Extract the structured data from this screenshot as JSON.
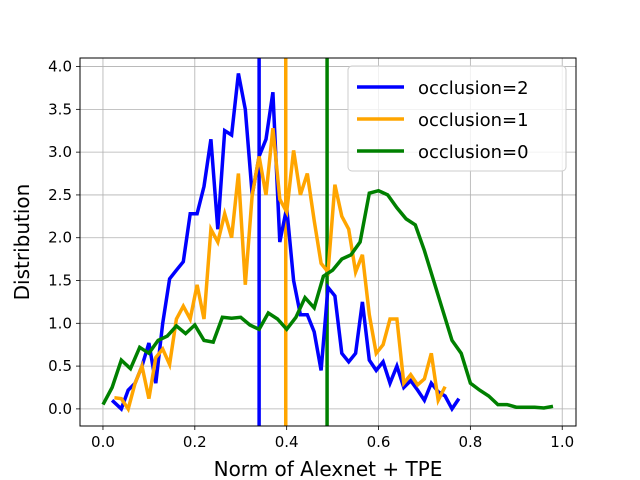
{
  "chart_data": {
    "type": "line",
    "xlabel": "Norm of Alexnet + TPE",
    "ylabel": "Distribution",
    "xlim": [
      -0.05,
      1.03
    ],
    "ylim": [
      -0.2,
      4.1
    ],
    "xticks": [
      0.0,
      0.2,
      0.4,
      0.6,
      0.8,
      1.0
    ],
    "xtick_labels": [
      "0.0",
      "0.2",
      "0.4",
      "0.6",
      "0.8",
      "1.0"
    ],
    "yticks": [
      0.0,
      0.5,
      1.0,
      1.5,
      2.0,
      2.5,
      3.0,
      3.5,
      4.0
    ],
    "ytick_labels": [
      "0.0",
      "0.5",
      "1.0",
      "1.5",
      "2.0",
      "2.5",
      "3.0",
      "3.5",
      "4.0"
    ],
    "grid": true,
    "legend_position": "top-right",
    "series": [
      {
        "name": "occlusion=2",
        "color": "#0000ff",
        "x": [
          0.02,
          0.04,
          0.055,
          0.07,
          0.085,
          0.1,
          0.115,
          0.13,
          0.145,
          0.16,
          0.175,
          0.19,
          0.205,
          0.22,
          0.235,
          0.25,
          0.265,
          0.28,
          0.295,
          0.31,
          0.325,
          0.34,
          0.355,
          0.37,
          0.385,
          0.4,
          0.415,
          0.43,
          0.445,
          0.46,
          0.475,
          0.49,
          0.505,
          0.52,
          0.535,
          0.55,
          0.565,
          0.58,
          0.595,
          0.61,
          0.625,
          0.64,
          0.655,
          0.67,
          0.685,
          0.7,
          0.715,
          0.73,
          0.745,
          0.76,
          0.775
        ],
        "y": [
          0.1,
          0.0,
          0.22,
          0.3,
          0.5,
          0.77,
          0.3,
          1.0,
          1.52,
          1.62,
          1.72,
          2.28,
          2.28,
          2.6,
          3.15,
          2.1,
          3.25,
          3.2,
          3.92,
          3.5,
          2.5,
          2.95,
          3.15,
          3.7,
          1.95,
          2.35,
          1.5,
          1.1,
          1.1,
          0.9,
          0.45,
          1.42,
          1.32,
          0.65,
          0.55,
          0.65,
          1.25,
          0.57,
          0.45,
          0.55,
          0.3,
          0.5,
          0.25,
          0.33,
          0.22,
          0.1,
          0.3,
          0.2,
          0.15,
          0.0,
          0.12
        ]
      },
      {
        "name": "occlusion=1",
        "color": "#ffa500",
        "x": [
          0.025,
          0.04,
          0.055,
          0.07,
          0.085,
          0.1,
          0.115,
          0.13,
          0.145,
          0.16,
          0.175,
          0.19,
          0.205,
          0.22,
          0.235,
          0.25,
          0.265,
          0.28,
          0.295,
          0.31,
          0.325,
          0.34,
          0.355,
          0.37,
          0.385,
          0.4,
          0.415,
          0.43,
          0.445,
          0.46,
          0.475,
          0.49,
          0.505,
          0.52,
          0.535,
          0.55,
          0.565,
          0.58,
          0.595,
          0.61,
          0.625,
          0.64,
          0.655,
          0.67,
          0.685,
          0.7,
          0.715,
          0.73,
          0.745
        ],
        "y": [
          0.13,
          0.12,
          0.0,
          0.3,
          0.5,
          0.12,
          0.6,
          0.7,
          0.52,
          1.05,
          1.2,
          1.05,
          1.45,
          1.05,
          2.1,
          1.95,
          2.28,
          2.0,
          2.75,
          1.45,
          2.5,
          2.95,
          2.5,
          3.28,
          2.45,
          2.3,
          3.02,
          2.5,
          2.75,
          2.2,
          1.7,
          1.6,
          2.62,
          2.25,
          2.1,
          1.6,
          1.8,
          1.1,
          0.65,
          0.75,
          1.05,
          1.05,
          0.3,
          0.4,
          0.28,
          0.35,
          0.65,
          0.1,
          0.26
        ]
      },
      {
        "name": "occlusion=0",
        "color": "#008000",
        "x": [
          0.0,
          0.02,
          0.04,
          0.06,
          0.08,
          0.1,
          0.12,
          0.14,
          0.16,
          0.18,
          0.2,
          0.22,
          0.24,
          0.26,
          0.28,
          0.3,
          0.32,
          0.34,
          0.36,
          0.38,
          0.4,
          0.42,
          0.44,
          0.46,
          0.48,
          0.5,
          0.52,
          0.54,
          0.56,
          0.58,
          0.6,
          0.62,
          0.64,
          0.66,
          0.68,
          0.7,
          0.72,
          0.74,
          0.76,
          0.78,
          0.8,
          0.82,
          0.84,
          0.86,
          0.88,
          0.9,
          0.92,
          0.94,
          0.96,
          0.98
        ],
        "y": [
          0.05,
          0.25,
          0.57,
          0.47,
          0.72,
          0.65,
          0.8,
          0.85,
          0.97,
          0.88,
          0.98,
          0.8,
          0.78,
          1.07,
          1.06,
          1.07,
          0.98,
          0.93,
          1.12,
          1.05,
          0.93,
          1.07,
          1.3,
          1.18,
          1.55,
          1.62,
          1.75,
          1.8,
          1.95,
          2.52,
          2.55,
          2.5,
          2.35,
          2.22,
          2.15,
          1.85,
          1.5,
          1.15,
          0.8,
          0.65,
          0.3,
          0.22,
          0.15,
          0.05,
          0.05,
          0.02,
          0.02,
          0.02,
          0.01,
          0.03
        ]
      }
    ],
    "vlines": [
      {
        "x": 0.34,
        "color": "#0000ff"
      },
      {
        "x": 0.398,
        "color": "#ffa500"
      },
      {
        "x": 0.488,
        "color": "#008000"
      }
    ]
  }
}
